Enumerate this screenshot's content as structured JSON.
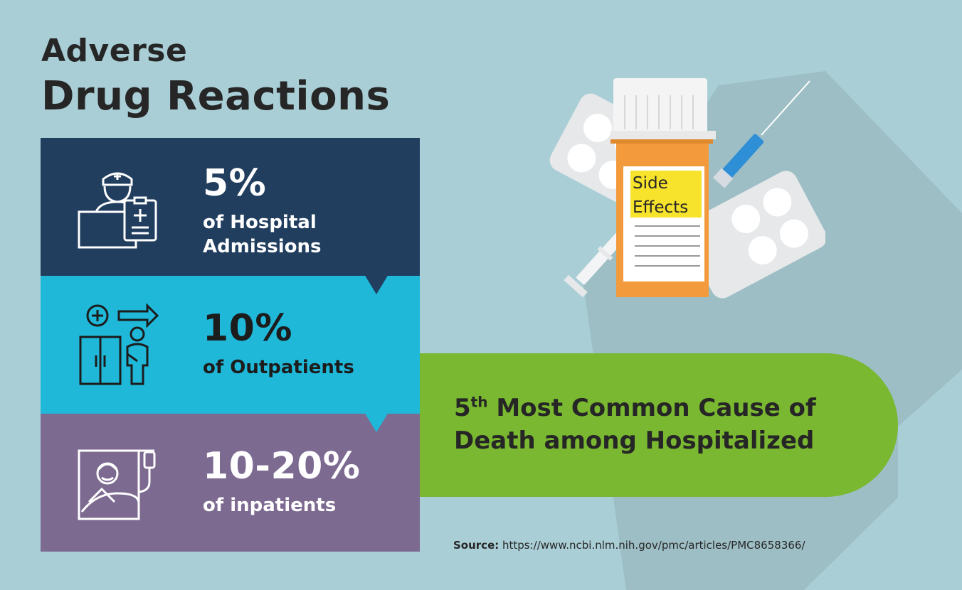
{
  "title": {
    "line1": "Adverse",
    "line2": "Drug Reactions"
  },
  "stats": [
    {
      "value": "5%",
      "description": "of Hospital Admissions",
      "icon": "doctor-clipboard-icon",
      "color": "#213e5f"
    },
    {
      "value": "10%",
      "description": "of Outpatients",
      "icon": "outpatient-door-icon",
      "color": "#1fb8d9"
    },
    {
      "value": "10-20%",
      "description": "of inpatients",
      "icon": "patient-bed-icon",
      "color": "#7c6a91"
    }
  ],
  "callout": {
    "rank": "5",
    "rank_suffix": "th",
    "line1_rest": " Most Common Cause of",
    "line2": "Death among Hospitalized",
    "color": "#79b830"
  },
  "illustration": {
    "label_line1": "Side",
    "label_line2": "Effects",
    "icon": "pill-bottle-syringe-illustration"
  },
  "source": {
    "label": "Source:",
    "url": " https://www.ncbi.nlm.nih.gov/pmc/articles/PMC8658366/"
  },
  "colors": {
    "background": "#a9ced6",
    "shadow": "#9dbec5",
    "pill_bottle": "#f39b3c",
    "label": "#f7e22c"
  }
}
